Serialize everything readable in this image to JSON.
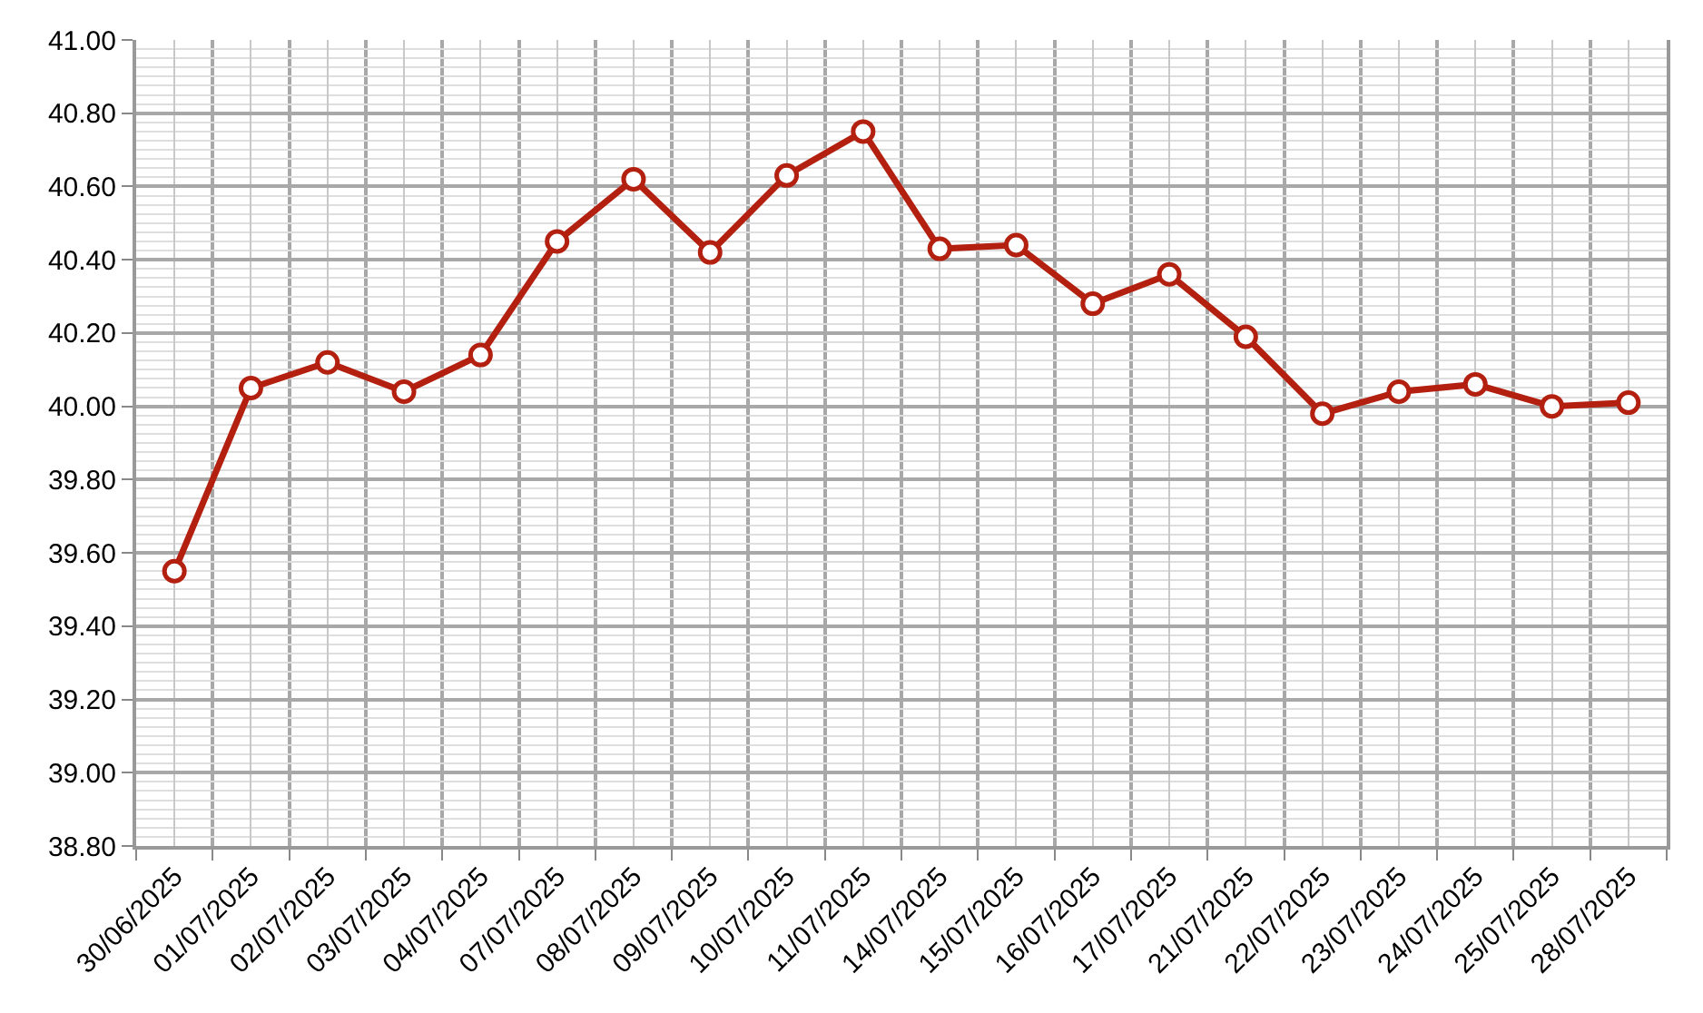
{
  "chart_data": {
    "type": "line",
    "categories": [
      "30/06/2025",
      "01/07/2025",
      "02/07/2025",
      "03/07/2025",
      "04/07/2025",
      "07/07/2025",
      "08/07/2025",
      "09/07/2025",
      "10/07/2025",
      "11/07/2025",
      "14/07/2025",
      "15/07/2025",
      "16/07/2025",
      "17/07/2025",
      "21/07/2025",
      "22/07/2025",
      "23/07/2025",
      "24/07/2025",
      "25/07/2025",
      "28/07/2025"
    ],
    "series": [
      {
        "color": "#b32010",
        "values": [
          39.55,
          40.05,
          40.12,
          40.04,
          40.14,
          40.45,
          40.62,
          40.42,
          40.63,
          40.75,
          40.43,
          40.44,
          40.28,
          40.36,
          40.19,
          39.98,
          40.04,
          40.06,
          40.0,
          40.01
        ]
      }
    ],
    "ylim": [
      38.8,
      41.0
    ],
    "yticks": [
      {
        "value": 38.8,
        "label": "38.80"
      },
      {
        "value": 39.0,
        "label": "39.00"
      },
      {
        "value": 39.2,
        "label": "39.20"
      },
      {
        "value": 39.4,
        "label": "39.40"
      },
      {
        "value": 39.6,
        "label": "39.60"
      },
      {
        "value": 39.8,
        "label": "39.80"
      },
      {
        "value": 40.0,
        "label": "40.00"
      },
      {
        "value": 40.2,
        "label": "40.20"
      },
      {
        "value": 40.4,
        "label": "40.40"
      },
      {
        "value": 40.6,
        "label": "40.60"
      },
      {
        "value": 40.8,
        "label": "40.80"
      },
      {
        "value": 41.0,
        "label": "41.00"
      }
    ],
    "grid": true,
    "marker": "circle",
    "line_style": "solid"
  }
}
